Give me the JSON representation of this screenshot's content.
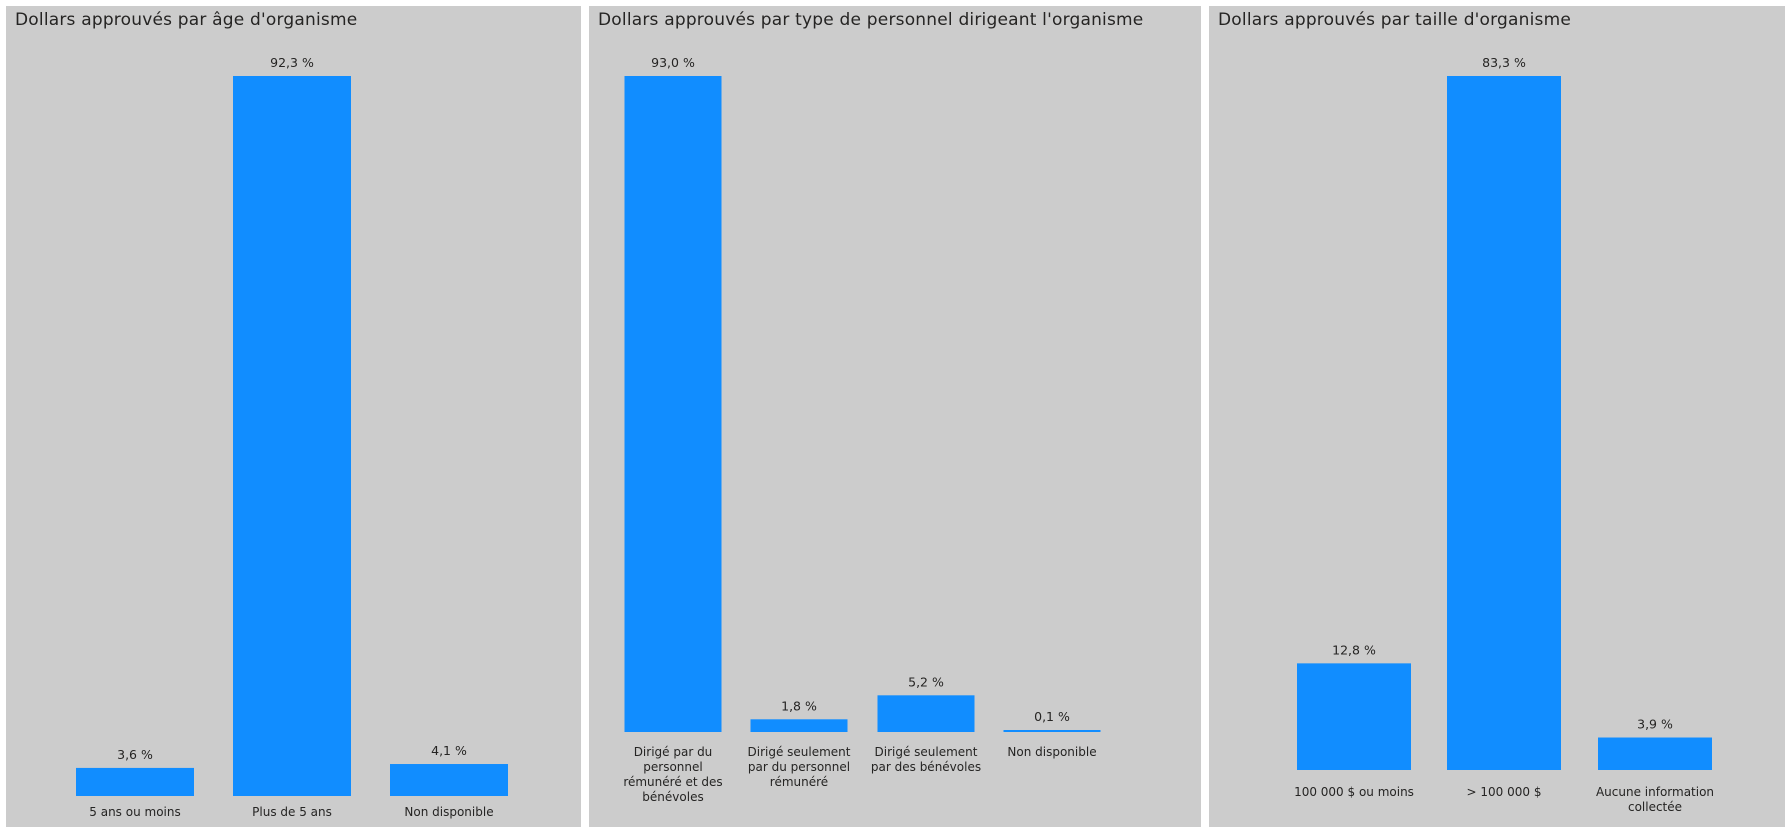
{
  "chart_data": [
    {
      "type": "bar",
      "title": "Dollars approuvés par âge d'organisme",
      "categories": [
        "5 ans ou moins",
        "Plus de 5 ans",
        "Non disponible"
      ],
      "values": [
        3.6,
        92.3,
        4.1
      ],
      "data_labels": [
        "3,6 %",
        "92,3 %",
        "4,1 %"
      ],
      "xlabel": "",
      "ylabel": "",
      "ylim": [
        0,
        92.3
      ],
      "grid": false,
      "color": "#118dff"
    },
    {
      "type": "bar",
      "title": "Dollars approuvés par type de personnel dirigeant l'organisme",
      "categories": [
        "Dirigé par du personnel rémunéré et des bénévoles",
        "Dirigé seulement par du personnel rémunéré",
        "Dirigé seulement par des bénévoles",
        "Non disponible"
      ],
      "values": [
        93.0,
        1.8,
        5.2,
        0.1
      ],
      "data_labels": [
        "93,0 %",
        "1,8 %",
        "5,2 %",
        "0,1 %"
      ],
      "xlabel": "",
      "ylabel": "",
      "ylim": [
        0,
        93.0
      ],
      "grid": false,
      "color": "#118dff"
    },
    {
      "type": "bar",
      "title": "Dollars approuvés par taille d'organisme",
      "categories": [
        "100 000 $ ou moins",
        "> 100 000 $",
        "Aucune information collectée"
      ],
      "values": [
        12.8,
        83.3,
        3.9
      ],
      "data_labels": [
        "12,8 %",
        "83,3 %",
        "3,9 %"
      ],
      "xlabel": "",
      "ylabel": "",
      "ylim": [
        0,
        83.3
      ],
      "grid": false,
      "color": "#118dff"
    }
  ]
}
